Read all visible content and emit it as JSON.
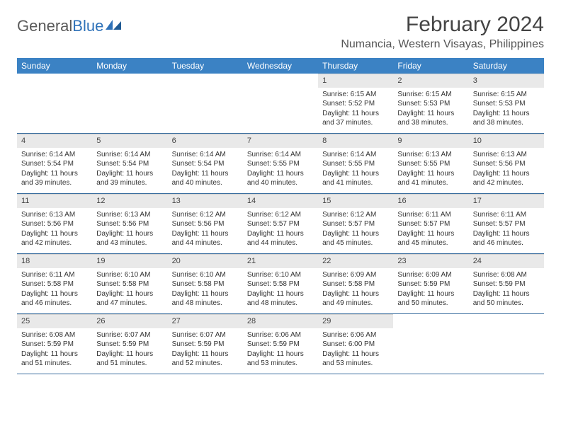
{
  "logo": {
    "text1": "General",
    "text2": "Blue"
  },
  "title": "February 2024",
  "location": "Numancia, Western Visayas, Philippines",
  "colors": {
    "header_bg": "#3b82c4",
    "header_text": "#ffffff",
    "daynum_bg": "#e9e9e9",
    "row_border": "#3b6fa0",
    "body_text": "#333333",
    "title_text": "#444444"
  },
  "dow": [
    "Sunday",
    "Monday",
    "Tuesday",
    "Wednesday",
    "Thursday",
    "Friday",
    "Saturday"
  ],
  "weeks": [
    [
      {
        "n": "",
        "sr": "",
        "ss": "",
        "dl": "",
        "empty": true
      },
      {
        "n": "",
        "sr": "",
        "ss": "",
        "dl": "",
        "empty": true
      },
      {
        "n": "",
        "sr": "",
        "ss": "",
        "dl": "",
        "empty": true
      },
      {
        "n": "",
        "sr": "",
        "ss": "",
        "dl": "",
        "empty": true
      },
      {
        "n": "1",
        "sr": "Sunrise: 6:15 AM",
        "ss": "Sunset: 5:52 PM",
        "dl": "Daylight: 11 hours and 37 minutes."
      },
      {
        "n": "2",
        "sr": "Sunrise: 6:15 AM",
        "ss": "Sunset: 5:53 PM",
        "dl": "Daylight: 11 hours and 38 minutes."
      },
      {
        "n": "3",
        "sr": "Sunrise: 6:15 AM",
        "ss": "Sunset: 5:53 PM",
        "dl": "Daylight: 11 hours and 38 minutes."
      }
    ],
    [
      {
        "n": "4",
        "sr": "Sunrise: 6:14 AM",
        "ss": "Sunset: 5:54 PM",
        "dl": "Daylight: 11 hours and 39 minutes."
      },
      {
        "n": "5",
        "sr": "Sunrise: 6:14 AM",
        "ss": "Sunset: 5:54 PM",
        "dl": "Daylight: 11 hours and 39 minutes."
      },
      {
        "n": "6",
        "sr": "Sunrise: 6:14 AM",
        "ss": "Sunset: 5:54 PM",
        "dl": "Daylight: 11 hours and 40 minutes."
      },
      {
        "n": "7",
        "sr": "Sunrise: 6:14 AM",
        "ss": "Sunset: 5:55 PM",
        "dl": "Daylight: 11 hours and 40 minutes."
      },
      {
        "n": "8",
        "sr": "Sunrise: 6:14 AM",
        "ss": "Sunset: 5:55 PM",
        "dl": "Daylight: 11 hours and 41 minutes."
      },
      {
        "n": "9",
        "sr": "Sunrise: 6:13 AM",
        "ss": "Sunset: 5:55 PM",
        "dl": "Daylight: 11 hours and 41 minutes."
      },
      {
        "n": "10",
        "sr": "Sunrise: 6:13 AM",
        "ss": "Sunset: 5:56 PM",
        "dl": "Daylight: 11 hours and 42 minutes."
      }
    ],
    [
      {
        "n": "11",
        "sr": "Sunrise: 6:13 AM",
        "ss": "Sunset: 5:56 PM",
        "dl": "Daylight: 11 hours and 42 minutes."
      },
      {
        "n": "12",
        "sr": "Sunrise: 6:13 AM",
        "ss": "Sunset: 5:56 PM",
        "dl": "Daylight: 11 hours and 43 minutes."
      },
      {
        "n": "13",
        "sr": "Sunrise: 6:12 AM",
        "ss": "Sunset: 5:56 PM",
        "dl": "Daylight: 11 hours and 44 minutes."
      },
      {
        "n": "14",
        "sr": "Sunrise: 6:12 AM",
        "ss": "Sunset: 5:57 PM",
        "dl": "Daylight: 11 hours and 44 minutes."
      },
      {
        "n": "15",
        "sr": "Sunrise: 6:12 AM",
        "ss": "Sunset: 5:57 PM",
        "dl": "Daylight: 11 hours and 45 minutes."
      },
      {
        "n": "16",
        "sr": "Sunrise: 6:11 AM",
        "ss": "Sunset: 5:57 PM",
        "dl": "Daylight: 11 hours and 45 minutes."
      },
      {
        "n": "17",
        "sr": "Sunrise: 6:11 AM",
        "ss": "Sunset: 5:57 PM",
        "dl": "Daylight: 11 hours and 46 minutes."
      }
    ],
    [
      {
        "n": "18",
        "sr": "Sunrise: 6:11 AM",
        "ss": "Sunset: 5:58 PM",
        "dl": "Daylight: 11 hours and 46 minutes."
      },
      {
        "n": "19",
        "sr": "Sunrise: 6:10 AM",
        "ss": "Sunset: 5:58 PM",
        "dl": "Daylight: 11 hours and 47 minutes."
      },
      {
        "n": "20",
        "sr": "Sunrise: 6:10 AM",
        "ss": "Sunset: 5:58 PM",
        "dl": "Daylight: 11 hours and 48 minutes."
      },
      {
        "n": "21",
        "sr": "Sunrise: 6:10 AM",
        "ss": "Sunset: 5:58 PM",
        "dl": "Daylight: 11 hours and 48 minutes."
      },
      {
        "n": "22",
        "sr": "Sunrise: 6:09 AM",
        "ss": "Sunset: 5:58 PM",
        "dl": "Daylight: 11 hours and 49 minutes."
      },
      {
        "n": "23",
        "sr": "Sunrise: 6:09 AM",
        "ss": "Sunset: 5:59 PM",
        "dl": "Daylight: 11 hours and 50 minutes."
      },
      {
        "n": "24",
        "sr": "Sunrise: 6:08 AM",
        "ss": "Sunset: 5:59 PM",
        "dl": "Daylight: 11 hours and 50 minutes."
      }
    ],
    [
      {
        "n": "25",
        "sr": "Sunrise: 6:08 AM",
        "ss": "Sunset: 5:59 PM",
        "dl": "Daylight: 11 hours and 51 minutes."
      },
      {
        "n": "26",
        "sr": "Sunrise: 6:07 AM",
        "ss": "Sunset: 5:59 PM",
        "dl": "Daylight: 11 hours and 51 minutes."
      },
      {
        "n": "27",
        "sr": "Sunrise: 6:07 AM",
        "ss": "Sunset: 5:59 PM",
        "dl": "Daylight: 11 hours and 52 minutes."
      },
      {
        "n": "28",
        "sr": "Sunrise: 6:06 AM",
        "ss": "Sunset: 5:59 PM",
        "dl": "Daylight: 11 hours and 53 minutes."
      },
      {
        "n": "29",
        "sr": "Sunrise: 6:06 AM",
        "ss": "Sunset: 6:00 PM",
        "dl": "Daylight: 11 hours and 53 minutes."
      },
      {
        "n": "",
        "sr": "",
        "ss": "",
        "dl": "",
        "empty": true
      },
      {
        "n": "",
        "sr": "",
        "ss": "",
        "dl": "",
        "empty": true
      }
    ]
  ]
}
